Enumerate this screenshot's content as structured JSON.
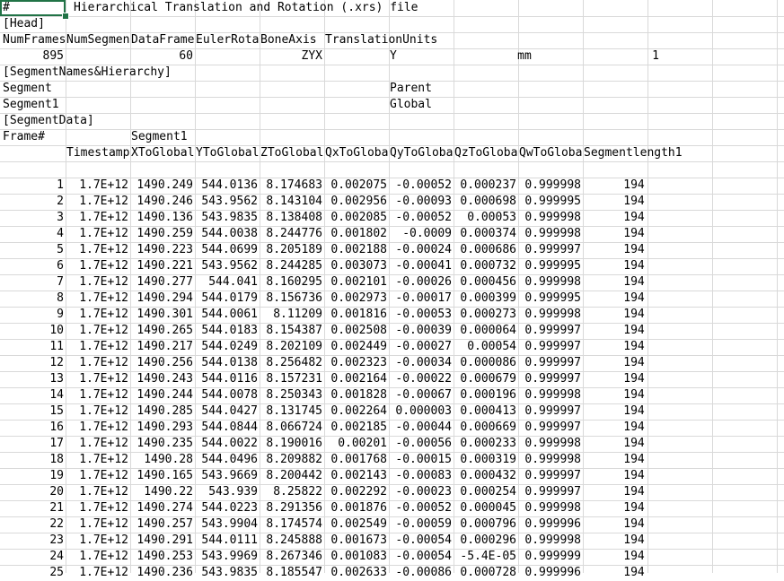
{
  "sheet": {
    "title_cell": "#",
    "title_text": "Hierarchical Translation and Rotation (.xrs) file",
    "head_label": "[Head]",
    "head_headers": [
      "NumFrames",
      "NumSegments",
      "DataFrameRate",
      "EulerRotationOrder",
      "BoneAxis",
      "TranslationUnits"
    ],
    "head_values": {
      "num_frames": "895",
      "num_segments": "1",
      "data_frame_rate": "60",
      "euler_order": "ZYX",
      "bone_axis": "Y",
      "translation_units": "mm"
    },
    "seg_names_label": "[SegmentNames&Hierarchy]",
    "seg_header_segment": "Segment",
    "seg_header_parent": "Parent",
    "seg_row_segment": "Segment1",
    "seg_row_parent": "Global",
    "seg_data_label": "[SegmentData]",
    "frame_label": "Frame#",
    "segment1_label": "Segment1",
    "data_headers": [
      "Timestamp",
      "XToGlobal",
      "YToGlobal",
      "ZToGlobal",
      "QxToGlobal",
      "QyToGlobal",
      "QzToGlobal",
      "QwToGlobal",
      "Segmentlength1"
    ],
    "rows": [
      [
        "1",
        "1.7E+12",
        "1490.249",
        "544.0136",
        "8.174683",
        "0.002075",
        "-0.00052",
        "0.000237",
        "0.999998",
        "194"
      ],
      [
        "2",
        "1.7E+12",
        "1490.246",
        "543.9562",
        "8.143104",
        "0.002956",
        "-0.00093",
        "0.000698",
        "0.999995",
        "194"
      ],
      [
        "3",
        "1.7E+12",
        "1490.136",
        "543.9835",
        "8.138408",
        "0.002085",
        "-0.00052",
        "0.00053",
        "0.999998",
        "194"
      ],
      [
        "4",
        "1.7E+12",
        "1490.259",
        "544.0038",
        "8.244776",
        "0.001802",
        "-0.0009",
        "0.000374",
        "0.999998",
        "194"
      ],
      [
        "5",
        "1.7E+12",
        "1490.223",
        "544.0699",
        "8.205189",
        "0.002188",
        "-0.00024",
        "0.000686",
        "0.999997",
        "194"
      ],
      [
        "6",
        "1.7E+12",
        "1490.221",
        "543.9562",
        "8.244285",
        "0.003073",
        "-0.00041",
        "0.000732",
        "0.999995",
        "194"
      ],
      [
        "7",
        "1.7E+12",
        "1490.277",
        "544.041",
        "8.160295",
        "0.002101",
        "-0.00026",
        "0.000456",
        "0.999998",
        "194"
      ],
      [
        "8",
        "1.7E+12",
        "1490.294",
        "544.0179",
        "8.156736",
        "0.002973",
        "-0.00017",
        "0.000399",
        "0.999995",
        "194"
      ],
      [
        "9",
        "1.7E+12",
        "1490.301",
        "544.0061",
        "8.11209",
        "0.001816",
        "-0.00053",
        "0.000273",
        "0.999998",
        "194"
      ],
      [
        "10",
        "1.7E+12",
        "1490.265",
        "544.0183",
        "8.154387",
        "0.002508",
        "-0.00039",
        "0.000064",
        "0.999997",
        "194"
      ],
      [
        "11",
        "1.7E+12",
        "1490.217",
        "544.0249",
        "8.202109",
        "0.002449",
        "-0.00027",
        "0.00054",
        "0.999997",
        "194"
      ],
      [
        "12",
        "1.7E+12",
        "1490.256",
        "544.0138",
        "8.256482",
        "0.002323",
        "-0.00034",
        "0.000086",
        "0.999997",
        "194"
      ],
      [
        "13",
        "1.7E+12",
        "1490.243",
        "544.0116",
        "8.157231",
        "0.002164",
        "-0.00022",
        "0.000679",
        "0.999997",
        "194"
      ],
      [
        "14",
        "1.7E+12",
        "1490.244",
        "544.0078",
        "8.250343",
        "0.001828",
        "-0.00067",
        "0.000196",
        "0.999998",
        "194"
      ],
      [
        "15",
        "1.7E+12",
        "1490.285",
        "544.0427",
        "8.131745",
        "0.002264",
        "0.000003",
        "0.000413",
        "0.999997",
        "194"
      ],
      [
        "16",
        "1.7E+12",
        "1490.293",
        "544.0844",
        "8.066724",
        "0.002185",
        "-0.00044",
        "0.000669",
        "0.999997",
        "194"
      ],
      [
        "17",
        "1.7E+12",
        "1490.235",
        "544.0022",
        "8.190016",
        "0.00201",
        "-0.00056",
        "0.000233",
        "0.999998",
        "194"
      ],
      [
        "18",
        "1.7E+12",
        "1490.28",
        "544.0496",
        "8.209882",
        "0.001768",
        "-0.00015",
        "0.000319",
        "0.999998",
        "194"
      ],
      [
        "19",
        "1.7E+12",
        "1490.165",
        "543.9669",
        "8.200442",
        "0.002143",
        "-0.00083",
        "0.000432",
        "0.999997",
        "194"
      ],
      [
        "20",
        "1.7E+12",
        "1490.22",
        "543.939",
        "8.25822",
        "0.002292",
        "-0.00023",
        "0.000254",
        "0.999997",
        "194"
      ],
      [
        "21",
        "1.7E+12",
        "1490.274",
        "544.0223",
        "8.291356",
        "0.001876",
        "-0.00052",
        "0.000045",
        "0.999998",
        "194"
      ],
      [
        "22",
        "1.7E+12",
        "1490.257",
        "543.9904",
        "8.174574",
        "0.002549",
        "-0.00059",
        "0.000796",
        "0.999996",
        "194"
      ],
      [
        "23",
        "1.7E+12",
        "1490.291",
        "544.0111",
        "8.245888",
        "0.001673",
        "-0.00054",
        "0.000296",
        "0.999998",
        "194"
      ],
      [
        "24",
        "1.7E+12",
        "1490.253",
        "543.9969",
        "8.267346",
        "0.001083",
        "-0.00054",
        "-5.4E-05",
        "0.999999",
        "194"
      ],
      [
        "25",
        "1.7E+12",
        "1490.236",
        "543.9835",
        "8.185547",
        "0.002633",
        "-0.00086",
        "0.000728",
        "0.999996",
        "194"
      ]
    ]
  },
  "colors": {
    "gridline": "#d9d9d9",
    "selection": "#217346",
    "background": "#ffffff"
  }
}
